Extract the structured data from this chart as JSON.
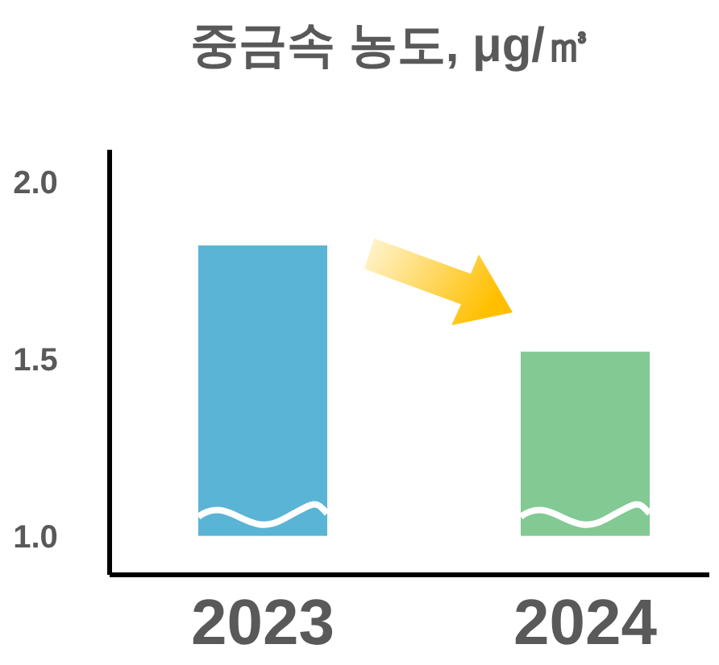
{
  "chart_data": {
    "type": "bar",
    "title": "중금속 농도, μg/㎥",
    "categories": [
      "2023",
      "2024"
    ],
    "base": [
      1.0,
      1.0
    ],
    "values": [
      0.82,
      0.52
    ],
    "colors": [
      "#5ab4d6",
      "#82c993"
    ],
    "ylim": [
      0.89,
      2.09
    ],
    "yticks": [
      {
        "value": 1.0,
        "label": "1.0"
      },
      {
        "value": 1.5,
        "label": "1.5"
      },
      {
        "value": 2.0,
        "label": "2.0"
      }
    ],
    "grid": false
  }
}
